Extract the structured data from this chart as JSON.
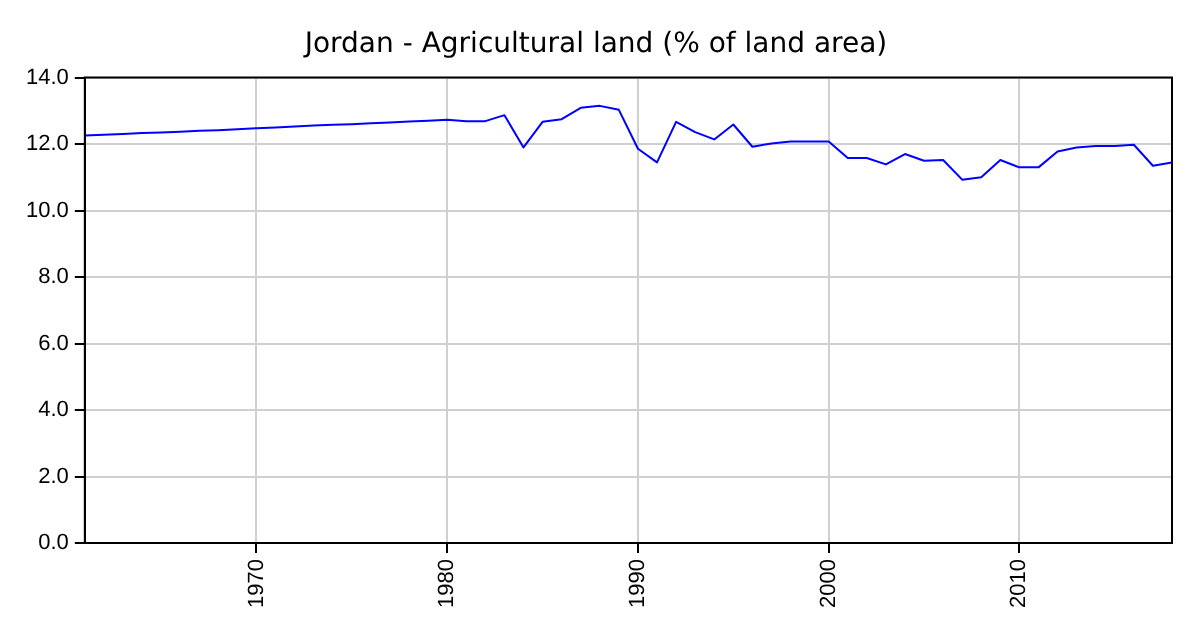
{
  "chart_data": {
    "type": "line",
    "title": "Jordan - Agricultural land (% of land area)",
    "x": [
      1961,
      1962,
      1963,
      1964,
      1965,
      1966,
      1967,
      1968,
      1969,
      1970,
      1971,
      1972,
      1973,
      1974,
      1975,
      1976,
      1977,
      1978,
      1979,
      1980,
      1981,
      1982,
      1983,
      1984,
      1985,
      1986,
      1987,
      1988,
      1989,
      1990,
      1991,
      1992,
      1993,
      1994,
      1995,
      1996,
      1997,
      1998,
      1999,
      2000,
      2001,
      2002,
      2003,
      2004,
      2005,
      2006,
      2007,
      2008,
      2009,
      2010,
      2011,
      2012,
      2013,
      2014,
      2015,
      2016,
      2017,
      2018
    ],
    "series": [
      {
        "color": "#0000ff",
        "values": [
          12.26,
          12.28,
          12.3,
          12.33,
          12.35,
          12.37,
          12.4,
          12.42,
          12.45,
          12.48,
          12.5,
          12.53,
          12.56,
          12.58,
          12.6,
          12.63,
          12.65,
          12.68,
          12.7,
          12.73,
          12.69,
          12.69,
          12.87,
          11.9,
          12.67,
          12.75,
          13.09,
          13.15,
          13.03,
          11.86,
          11.45,
          12.67,
          12.36,
          12.14,
          12.59,
          11.92,
          12.02,
          12.08,
          12.08,
          12.08,
          11.58,
          11.58,
          11.39,
          11.7,
          11.5,
          11.52,
          10.93,
          11.0,
          11.52,
          11.3,
          11.3,
          11.78,
          11.9,
          11.94,
          11.94,
          11.98,
          11.35,
          11.45
        ]
      }
    ],
    "xlim": [
      1961,
      2018
    ],
    "xticks": [
      1970,
      1980,
      1990,
      2000,
      2010
    ],
    "ylim": [
      0,
      14
    ],
    "yticks": [
      {
        "value": 0,
        "label": "0.0"
      },
      {
        "value": 2,
        "label": "2.0"
      },
      {
        "value": 4,
        "label": "4.0"
      },
      {
        "value": 6,
        "label": "6.0"
      },
      {
        "value": 8,
        "label": "8.0"
      },
      {
        "value": 10,
        "label": "10.0"
      },
      {
        "value": 12,
        "label": "12.0"
      },
      {
        "value": 14,
        "label": "14.0"
      }
    ],
    "grid": true,
    "legend": false,
    "marker": "none",
    "line_style": "solid"
  }
}
